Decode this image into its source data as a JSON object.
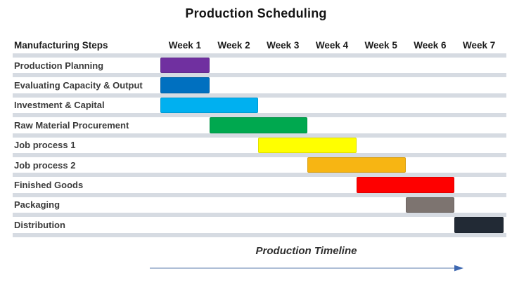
{
  "title": "Production Scheduling",
  "header": {
    "steps_label": "Manufacturing Steps",
    "weeks": [
      "Week 1",
      "Week 2",
      "Week 3",
      "Week 4",
      "Week 5",
      "Week 6",
      "Week 7"
    ]
  },
  "footer": {
    "timeline_label": "Production Timeline"
  },
  "colors": {
    "row_stripe": "#D6DBE2",
    "background": "#FFFFFF",
    "title_text": "#141414",
    "label_text": "#3C3C3C",
    "arrow_line": "#93A9C9",
    "arrow_head": "#3E68B1"
  },
  "chart_data": {
    "type": "bar",
    "variant": "gantt",
    "title": "Production Scheduling",
    "row_header": "Manufacturing Steps",
    "x_ticks": [
      "Week 1",
      "Week 2",
      "Week 3",
      "Week 4",
      "Week 5",
      "Week 6",
      "Week 7"
    ],
    "x_range_weeks": [
      1,
      7
    ],
    "grid": "horizontal-row-stripes",
    "legend": "none",
    "footer_annotation": "Production Timeline",
    "tasks": [
      {
        "label": "Production Planning",
        "start_week": 1,
        "end_week": 1,
        "duration_weeks": 1,
        "color": "#7030A0"
      },
      {
        "label": "Evaluating Capacity & Output",
        "start_week": 1,
        "end_week": 1,
        "duration_weeks": 1,
        "color": "#0070C0"
      },
      {
        "label": "Investment & Capital",
        "start_week": 1,
        "end_week": 2,
        "duration_weeks": 2,
        "color": "#00B0F0"
      },
      {
        "label": "Raw Material Procurement",
        "start_week": 2,
        "end_week": 3,
        "duration_weeks": 2,
        "color": "#00A84F"
      },
      {
        "label": "Job process 1",
        "start_week": 3,
        "end_week": 4,
        "duration_weeks": 2,
        "color": "#FFFF00"
      },
      {
        "label": "Job process 2",
        "start_week": 4,
        "end_week": 5,
        "duration_weeks": 2,
        "color": "#F7B513"
      },
      {
        "label": "Finished Goods",
        "start_week": 5,
        "end_week": 6,
        "duration_weeks": 2,
        "color": "#FE0000"
      },
      {
        "label": "Packaging",
        "start_week": 6,
        "end_week": 6,
        "duration_weeks": 1,
        "color": "#7D7470"
      },
      {
        "label": "Distribution",
        "start_week": 7,
        "end_week": 7,
        "duration_weeks": 1,
        "color": "#222A35"
      }
    ]
  }
}
